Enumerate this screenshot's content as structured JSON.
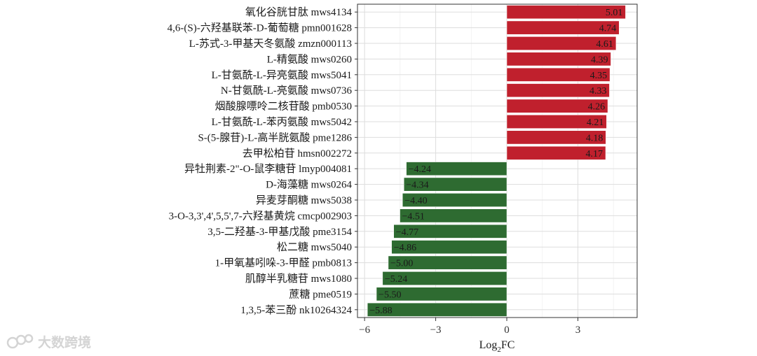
{
  "chart_data": {
    "type": "bar",
    "orientation": "horizontal",
    "categories": [
      "氧化谷胱甘肽 mws4134",
      "4,6-(S)-六羟基联苯-D-葡萄糖 pmn001628",
      "L-苏式-3-甲基天冬氨酸 zmzn000113",
      "L-精氨酸 mws0260",
      "L-甘氨酰-L-异亮氨酸 mws5041",
      "N-甘氨酰-L-亮氨酸 mws0736",
      "烟酸腺嘌呤二核苷酸 pmb0530",
      "L-甘氨酰-L-苯丙氨酸 mws5042",
      "S-(5-腺苷)-L-高半胱氨酸 pme1286",
      "去甲松柏苷 hmsn002272",
      "异牡荆素-2\"-O-鼠李糖苷 lmyp004081",
      "D-海藻糖 mws0264",
      "异麦芽酮糖 mws5038",
      "3-O-3,3',4',5,5',7-六羟基黄烷 cmcp002903",
      "3,5-二羟基-3-甲基戊酸 pme3154",
      "松二糖 mws5040",
      "1-甲氧基吲哚-3-甲醛 pmb0813",
      "肌醇半乳糖苷 mws1080",
      "蔗糖 pme0519",
      "1,3,5-苯三酚 nk10264324"
    ],
    "values": [
      5.01,
      4.74,
      4.61,
      4.39,
      4.35,
      4.33,
      4.26,
      4.21,
      4.18,
      4.17,
      -4.24,
      -4.34,
      -4.4,
      -4.51,
      -4.77,
      -4.86,
      -5.0,
      -5.24,
      -5.5,
      -5.88
    ],
    "value_labels": [
      "5.01",
      "4.74",
      "4.61",
      "4.39",
      "4.35",
      "4.33",
      "4.26",
      "4.21",
      "4.18",
      "4.17",
      "−4.24",
      "−4.34",
      "−4.40",
      "−4.51",
      "−4.77",
      "−4.86",
      "−5.00",
      "−5.24",
      "−5.50",
      "−5.88"
    ],
    "xlim": [
      -6.3,
      5.5
    ],
    "xticks": [
      -6,
      -3,
      0,
      3
    ],
    "xtick_labels": [
      "−6",
      "−3",
      "0",
      "3"
    ],
    "xlabel_main": "Log",
    "xlabel_sub": "2",
    "xlabel_tail": "FC",
    "colors": {
      "positive": "#c0202d",
      "negative": "#2e6b31"
    },
    "grid": true,
    "legend": "none"
  },
  "watermark": {
    "text": "大数跨境",
    "icon": "watermark-logo-icon"
  }
}
